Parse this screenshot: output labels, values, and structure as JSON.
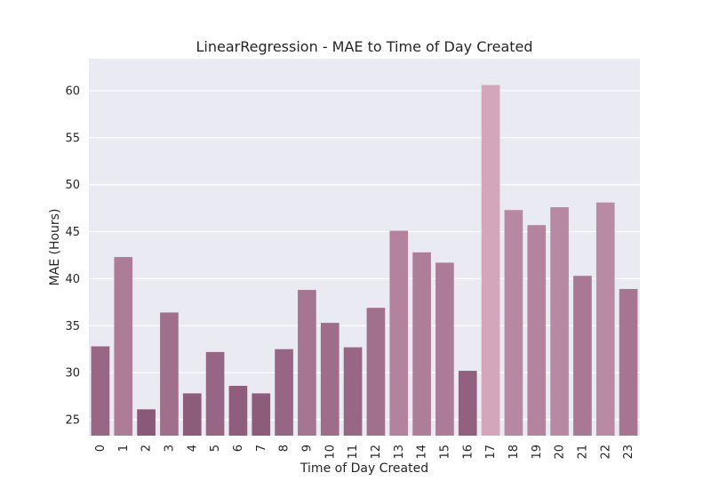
{
  "chart_data": {
    "type": "bar",
    "title": "LinearRegression - MAE to Time of Day Created",
    "xlabel": "Time of Day Created",
    "ylabel": "MAE (Hours)",
    "ylim": [
      23.3,
      63.4
    ],
    "yticks": [
      25,
      30,
      35,
      40,
      45,
      50,
      55,
      60
    ],
    "grid": true,
    "categories": [
      "0",
      "1",
      "2",
      "3",
      "4",
      "5",
      "6",
      "7",
      "8",
      "9",
      "10",
      "11",
      "12",
      "13",
      "14",
      "15",
      "16",
      "17",
      "18",
      "19",
      "20",
      "21",
      "22",
      "23"
    ],
    "values": [
      32.8,
      42.3,
      26.1,
      36.4,
      27.8,
      32.2,
      28.6,
      27.8,
      32.5,
      38.8,
      35.3,
      32.7,
      36.9,
      45.1,
      42.8,
      41.7,
      30.2,
      60.6,
      47.3,
      45.7,
      47.6,
      40.3,
      48.1,
      38.9
    ],
    "colors": {
      "background": "#eaeaf2",
      "grid": "#ffffff",
      "bar_dark": "#8a5878",
      "bar_light": "#d4a6bc"
    }
  }
}
